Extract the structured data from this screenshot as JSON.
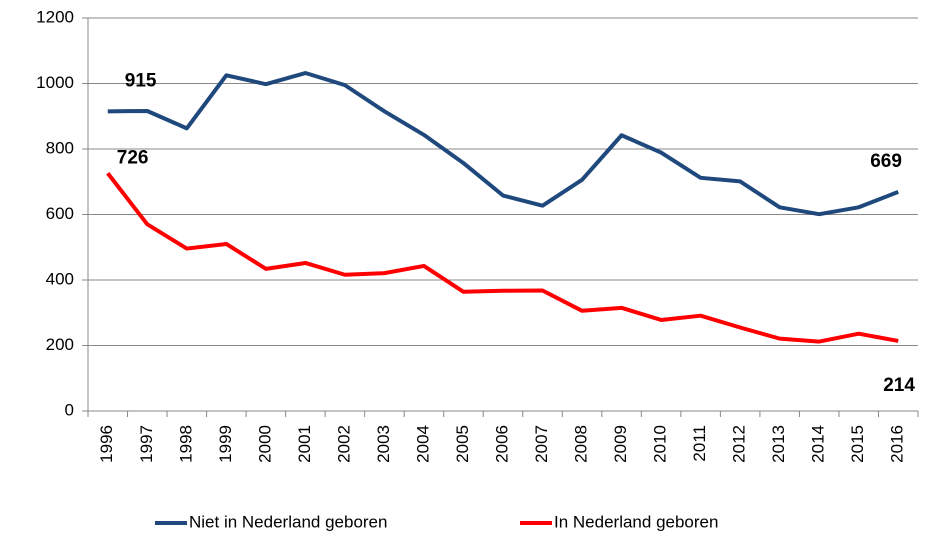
{
  "chart_data": {
    "type": "line",
    "categories": [
      "1996",
      "1997",
      "1998",
      "1999",
      "2000",
      "2001",
      "2002",
      "2003",
      "2004",
      "2005",
      "2006",
      "2007",
      "2008",
      "2009",
      "2010",
      "2011",
      "2012",
      "2013",
      "2014",
      "2015",
      "2016"
    ],
    "series": [
      {
        "name": "Niet in Nederland geboren",
        "color": "#1f497d",
        "values": [
          915,
          916,
          863,
          1025,
          998,
          1032,
          995,
          915,
          843,
          757,
          658,
          627,
          706,
          842,
          789,
          712,
          701,
          622,
          601,
          622,
          669
        ]
      },
      {
        "name": "In Nederland geboren",
        "color": "#ff0000",
        "values": [
          726,
          570,
          496,
          510,
          434,
          452,
          416,
          421,
          443,
          364,
          367,
          368,
          306,
          315,
          278,
          291,
          255,
          221,
          212,
          236,
          214
        ]
      }
    ],
    "ylim": [
      0,
      1200
    ],
    "yticks": [
      0,
      200,
      400,
      600,
      800,
      1000,
      1200
    ],
    "grid": true,
    "legend": "bottom"
  }
}
